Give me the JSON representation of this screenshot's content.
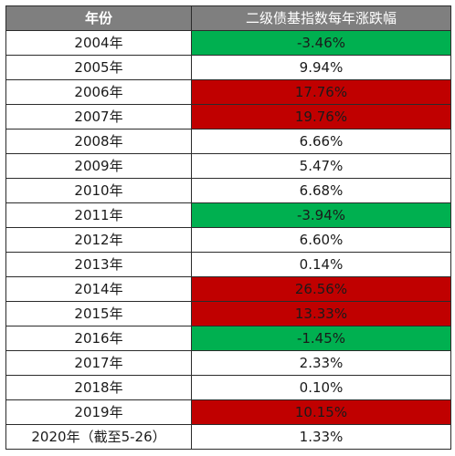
{
  "table": {
    "headers": {
      "year": "年份",
      "change": "二级债基指数每年涨跌幅"
    },
    "rows": [
      {
        "year": "2004年",
        "change": "-3.46%",
        "highlight": "green"
      },
      {
        "year": "2005年",
        "change": "9.94%",
        "highlight": "none"
      },
      {
        "year": "2006年",
        "change": "17.76%",
        "highlight": "red"
      },
      {
        "year": "2007年",
        "change": "19.76%",
        "highlight": "red"
      },
      {
        "year": "2008年",
        "change": "6.66%",
        "highlight": "none"
      },
      {
        "year": "2009年",
        "change": "5.47%",
        "highlight": "none"
      },
      {
        "year": "2010年",
        "change": "6.68%",
        "highlight": "none"
      },
      {
        "year": "2011年",
        "change": "-3.94%",
        "highlight": "green"
      },
      {
        "year": "2012年",
        "change": "6.60%",
        "highlight": "none"
      },
      {
        "year": "2013年",
        "change": "0.14%",
        "highlight": "none"
      },
      {
        "year": "2014年",
        "change": "26.56%",
        "highlight": "red"
      },
      {
        "year": "2015年",
        "change": "13.33%",
        "highlight": "red"
      },
      {
        "year": "2016年",
        "change": "-1.45%",
        "highlight": "green"
      },
      {
        "year": "2017年",
        "change": "2.33%",
        "highlight": "none"
      },
      {
        "year": "2018年",
        "change": "0.10%",
        "highlight": "none"
      },
      {
        "year": "2019年",
        "change": "10.15%",
        "highlight": "red"
      },
      {
        "year": "2020年（截至5-26）",
        "change": "1.33%",
        "highlight": "none"
      }
    ]
  },
  "colors": {
    "header_bg": "#7f7f7f",
    "negative_fill": "#00b050",
    "high_fill": "#c00000",
    "border": "#2b2b2b"
  }
}
